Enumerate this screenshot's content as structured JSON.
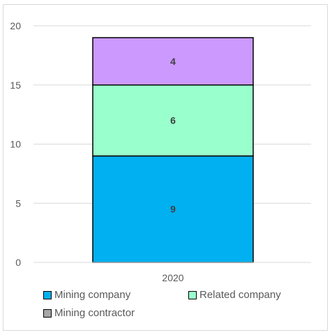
{
  "chart_data": {
    "type": "bar",
    "stacked": true,
    "categories": [
      "2020"
    ],
    "series": [
      {
        "name": "Mining company",
        "values": [
          9
        ],
        "color": "#00b0f0"
      },
      {
        "name": "Related company",
        "values": [
          6
        ],
        "color": "#99ffcc"
      },
      {
        "name": "Mining contractor",
        "values": [
          0
        ],
        "color": "#a6a6a6"
      },
      {
        "name": "",
        "values": [
          4
        ],
        "color": "#cc99ff"
      }
    ],
    "data_labels": [
      "9",
      "6",
      "4"
    ],
    "ylim": [
      0,
      20
    ],
    "yticks": [
      "0",
      "5",
      "10",
      "15",
      "20"
    ],
    "grid": true,
    "legend_position": "bottom",
    "title": "",
    "xlabel": "",
    "ylabel": ""
  }
}
